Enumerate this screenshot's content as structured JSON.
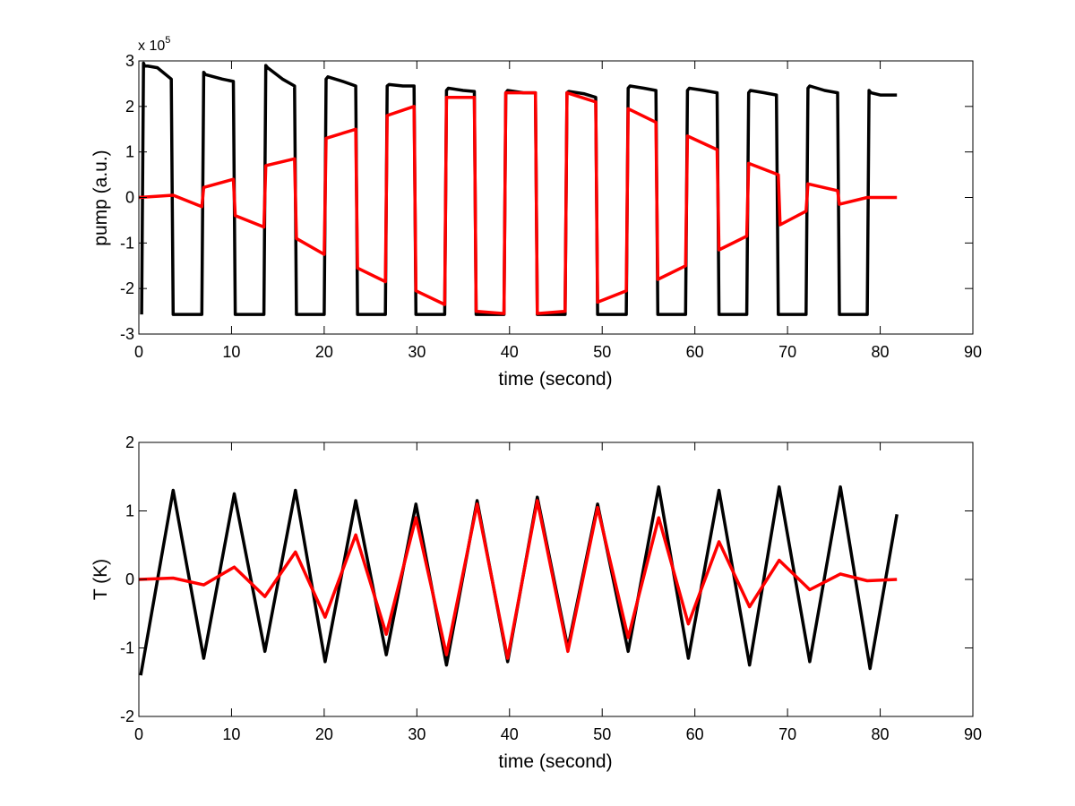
{
  "chart_data": [
    {
      "type": "line",
      "xlabel": "time (second)",
      "ylabel": "pump (a.u.)",
      "xlim": [
        0,
        90
      ],
      "ylim": [
        -3,
        3
      ],
      "xticks": [
        0,
        10,
        20,
        30,
        40,
        50,
        60,
        70,
        80,
        90
      ],
      "yticks": [
        -3,
        -2,
        -1,
        0,
        1,
        2,
        3
      ],
      "y_multiplier": {
        "base": "x 10",
        "exponent": "5"
      },
      "grid": false,
      "series": [
        {
          "color": "#000000",
          "x": [
            0.3,
            0.5,
            0.6,
            2.0,
            3.5,
            3.7,
            6.8,
            7.0,
            7.2,
            9.0,
            10.2,
            10.4,
            13.5,
            13.7,
            13.9,
            15.5,
            16.8,
            17.0,
            20.0,
            20.2,
            20.4,
            22.0,
            23.4,
            23.6,
            26.6,
            26.8,
            27.0,
            28.5,
            29.7,
            29.9,
            33.0,
            33.2,
            33.4,
            35.0,
            36.2,
            36.4,
            39.4,
            39.6,
            39.8,
            41.5,
            42.8,
            43.0,
            46.0,
            46.2,
            46.4,
            48.0,
            49.3,
            49.5,
            52.6,
            52.8,
            53.0,
            54.5,
            55.8,
            56.0,
            59.0,
            59.2,
            59.4,
            61.0,
            62.4,
            62.6,
            65.6,
            65.8,
            66.0,
            67.5,
            68.8,
            69.0,
            72.0,
            72.2,
            72.4,
            74.0,
            75.4,
            75.6,
            78.6,
            78.8,
            79.0,
            80.0,
            81.8
          ],
          "y": [
            -2.57,
            2.95,
            2.9,
            2.85,
            2.6,
            -2.57,
            -2.57,
            2.75,
            2.7,
            2.6,
            2.55,
            -2.57,
            -2.57,
            2.9,
            2.85,
            2.6,
            2.45,
            -2.57,
            -2.57,
            2.6,
            2.65,
            2.55,
            2.45,
            -2.57,
            -2.57,
            2.45,
            2.48,
            2.45,
            2.45,
            -2.57,
            -2.57,
            2.35,
            2.4,
            2.35,
            2.33,
            -2.57,
            -2.57,
            2.3,
            2.35,
            2.3,
            2.3,
            -2.57,
            -2.57,
            2.3,
            2.33,
            2.28,
            2.2,
            -2.57,
            -2.57,
            2.4,
            2.45,
            2.4,
            2.35,
            -2.57,
            -2.57,
            2.35,
            2.4,
            2.35,
            2.3,
            -2.57,
            -2.57,
            2.3,
            2.35,
            2.3,
            2.25,
            -2.57,
            -2.57,
            2.4,
            2.45,
            2.35,
            2.3,
            -2.57,
            -2.57,
            2.35,
            2.3,
            2.25,
            2.25
          ]
        },
        {
          "color": "#ff0000",
          "x": [
            0.0,
            3.7,
            6.8,
            7.0,
            10.2,
            10.4,
            13.5,
            13.7,
            16.8,
            17.0,
            20.0,
            20.2,
            23.4,
            23.6,
            26.6,
            26.8,
            29.7,
            29.9,
            33.0,
            33.2,
            36.2,
            36.4,
            39.4,
            39.6,
            42.8,
            43.0,
            46.0,
            46.2,
            49.3,
            49.5,
            52.6,
            52.8,
            55.8,
            56.0,
            59.0,
            59.2,
            62.4,
            62.6,
            65.6,
            65.8,
            69.0,
            69.2,
            72.0,
            72.2,
            75.4,
            75.6,
            78.6,
            81.8
          ],
          "y": [
            0.0,
            0.05,
            -0.2,
            0.22,
            0.4,
            -0.4,
            -0.65,
            0.7,
            0.85,
            -0.9,
            -1.25,
            1.3,
            1.5,
            -1.55,
            -1.85,
            1.8,
            2.0,
            -2.05,
            -2.35,
            2.2,
            2.2,
            -2.5,
            -2.55,
            2.3,
            2.3,
            -2.55,
            -2.5,
            2.3,
            2.1,
            -2.3,
            -2.05,
            1.95,
            1.65,
            -1.8,
            -1.5,
            1.35,
            1.05,
            -1.15,
            -0.85,
            0.75,
            0.5,
            -0.6,
            -0.3,
            0.3,
            0.15,
            -0.15,
            0.0,
            0.0
          ]
        }
      ]
    },
    {
      "type": "line",
      "xlabel": "time (second)",
      "ylabel": "T (K)",
      "xlim": [
        0,
        90
      ],
      "ylim": [
        -2,
        2
      ],
      "xticks": [
        0,
        10,
        20,
        30,
        40,
        50,
        60,
        70,
        80,
        90
      ],
      "yticks": [
        -2,
        -1,
        0,
        1,
        2
      ],
      "grid": false,
      "series": [
        {
          "color": "#000000",
          "x": [
            0.2,
            3.7,
            7.0,
            10.3,
            13.6,
            16.9,
            20.1,
            23.4,
            26.7,
            29.9,
            33.2,
            36.5,
            39.8,
            43.0,
            46.3,
            49.5,
            52.8,
            56.1,
            59.3,
            62.6,
            65.9,
            69.1,
            72.4,
            75.7,
            78.9,
            81.8
          ],
          "y": [
            -1.4,
            1.3,
            -1.15,
            1.25,
            -1.05,
            1.3,
            -1.2,
            1.15,
            -1.1,
            1.1,
            -1.25,
            1.15,
            -1.2,
            1.2,
            -1.0,
            1.1,
            -1.05,
            1.35,
            -1.15,
            1.3,
            -1.25,
            1.35,
            -1.2,
            1.35,
            -1.3,
            0.95
          ]
        },
        {
          "color": "#ff0000",
          "x": [
            0.0,
            3.7,
            7.0,
            10.3,
            13.6,
            16.9,
            20.1,
            23.4,
            26.7,
            29.9,
            33.2,
            36.5,
            39.8,
            43.0,
            46.3,
            49.5,
            52.8,
            56.1,
            59.3,
            62.6,
            65.9,
            69.1,
            72.4,
            75.7,
            78.6,
            81.8
          ],
          "y": [
            0.0,
            0.02,
            -0.08,
            0.18,
            -0.25,
            0.4,
            -0.55,
            0.65,
            -0.8,
            0.9,
            -1.1,
            1.1,
            -1.15,
            1.15,
            -1.05,
            1.05,
            -0.85,
            0.9,
            -0.65,
            0.55,
            -0.4,
            0.28,
            -0.15,
            0.08,
            -0.02,
            0.0
          ]
        }
      ]
    }
  ]
}
